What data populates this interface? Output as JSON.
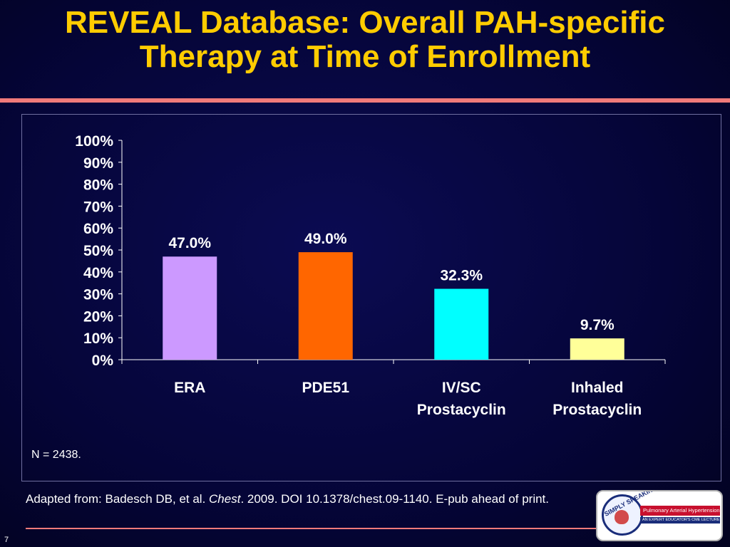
{
  "slide": {
    "title_line1": "REVEAL Database: Overall PAH-specific",
    "title_line2": "Therapy at Time of Enrollment",
    "note": "N = 2438.",
    "source_prefix": "Adapted from: Badesch DB, et al. ",
    "source_journal": "Chest",
    "source_suffix": ". 2009. DOI 10.1378/chest.09-1140. E-pub ahead of print.",
    "page_number": "7"
  },
  "logo": {
    "brand": "SIMPLY SPEAKING",
    "tagline": "Pulmonary Arterial Hypertension",
    "subtagline": "AN EXPERT EDUCATOR'S CME LECTURE SERIES"
  },
  "chart_data": {
    "type": "bar",
    "title": "",
    "xlabel": "",
    "ylabel": "",
    "ylim": [
      0,
      100
    ],
    "yticks": [
      0,
      10,
      20,
      30,
      40,
      50,
      60,
      70,
      80,
      90,
      100
    ],
    "ytick_suffix": "%",
    "grid": false,
    "legend": "none",
    "categories": [
      [
        "ERA"
      ],
      [
        "PDE51"
      ],
      [
        "IV/SC",
        "Prostacyclin"
      ],
      [
        "Inhaled",
        "Prostacyclin"
      ]
    ],
    "values": [
      47.0,
      49.0,
      32.3,
      9.7
    ],
    "data_labels": [
      "47.0%",
      "49.0%",
      "32.3%",
      "9.7%"
    ],
    "colors": [
      "#cc99ff",
      "#ff6600",
      "#00ffff",
      "#ffff99"
    ]
  }
}
